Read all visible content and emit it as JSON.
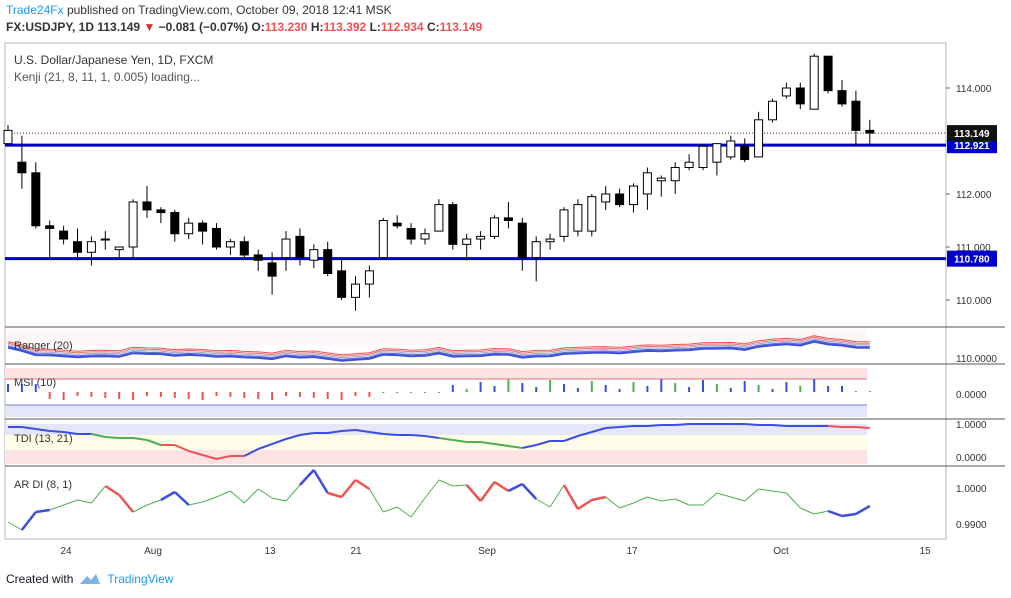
{
  "header": {
    "brand": "Trade24Fx",
    "published_text": "published on TradingView.com, October 09, 2018 12:41 MSK",
    "symbol": "FX:USDJPY, 1D",
    "price": "113.149",
    "change": "−0.081 (−0.07%)",
    "o_label": "O:",
    "o_value": "113.230",
    "h_label": "H:",
    "h_value": "113.392",
    "l_label": "L:",
    "l_value": "112.934",
    "c_label": "C:",
    "c_value": "113.149"
  },
  "chart_title": "U.S. Dollar/Japanese Yen, 1D, FXCM",
  "study_loading": "Kenji (21, 8, 11, 1, 0.005) loading...",
  "panes": {
    "ranger": "Ranger (20)",
    "msi": "MSI (10)",
    "tdi": "TDI (13, 21)",
    "ardi": "AR DI (8, 1)"
  },
  "footer": {
    "created_with": "Created with",
    "tv": "TradingView"
  },
  "colors": {
    "up": "#ffffff",
    "down": "#000000",
    "level": "#0000cc",
    "blue_series": "#3b4ee0",
    "red_series": "#ef5350",
    "green_series": "#4caf50"
  },
  "chart_data": {
    "type": "candlestick",
    "price_axis": {
      "ticks": [
        "114.000",
        "113.000",
        "112.000",
        "111.000",
        "110.000"
      ],
      "ylim": [
        109.5,
        115.05
      ]
    },
    "time_axis": {
      "ticks": [
        "24",
        "Aug",
        "13",
        "21",
        "Sep",
        "17",
        "Oct",
        "15"
      ]
    },
    "last_price": "113.149",
    "levels": [
      {
        "value": 112.921,
        "label": "112.921"
      },
      {
        "value": 110.78,
        "label": "110.780"
      }
    ],
    "candles": [
      [
        112.95,
        113.3,
        112.9,
        113.2
      ],
      [
        112.6,
        113.1,
        112.1,
        112.4
      ],
      [
        112.4,
        112.6,
        111.35,
        111.4
      ],
      [
        111.4,
        111.5,
        110.8,
        111.35
      ],
      [
        111.3,
        111.4,
        111.05,
        111.15
      ],
      [
        111.1,
        111.35,
        110.75,
        110.9
      ],
      [
        110.9,
        111.2,
        110.65,
        111.1
      ],
      [
        111.15,
        111.3,
        110.95,
        111.15
      ],
      [
        110.95,
        111.0,
        110.8,
        111.0
      ],
      [
        111.0,
        111.9,
        110.8,
        111.85
      ],
      [
        111.85,
        112.15,
        111.55,
        111.7
      ],
      [
        111.7,
        111.75,
        111.45,
        111.65
      ],
      [
        111.65,
        111.7,
        111.1,
        111.25
      ],
      [
        111.25,
        111.55,
        111.15,
        111.45
      ],
      [
        111.45,
        111.5,
        111.05,
        111.3
      ],
      [
        111.35,
        111.45,
        110.95,
        111.0
      ],
      [
        111.0,
        111.15,
        110.85,
        111.1
      ],
      [
        111.1,
        111.2,
        110.8,
        110.85
      ],
      [
        110.85,
        110.95,
        110.55,
        110.75
      ],
      [
        110.7,
        110.9,
        110.1,
        110.45
      ],
      [
        110.8,
        111.3,
        110.55,
        111.15
      ],
      [
        111.2,
        111.35,
        110.65,
        110.8
      ],
      [
        110.75,
        111.05,
        110.6,
        110.95
      ],
      [
        110.95,
        111.1,
        110.45,
        110.5
      ],
      [
        110.55,
        110.8,
        110.0,
        110.05
      ],
      [
        110.05,
        110.45,
        109.8,
        110.3
      ],
      [
        110.3,
        110.65,
        110.05,
        110.55
      ],
      [
        110.8,
        111.55,
        110.8,
        111.5
      ],
      [
        111.45,
        111.6,
        111.35,
        111.4
      ],
      [
        111.35,
        111.45,
        111.05,
        111.15
      ],
      [
        111.15,
        111.35,
        111.05,
        111.25
      ],
      [
        111.3,
        111.9,
        111.3,
        111.8
      ],
      [
        111.8,
        111.85,
        110.95,
        111.05
      ],
      [
        111.05,
        111.25,
        110.75,
        111.15
      ],
      [
        111.15,
        111.3,
        110.95,
        111.2
      ],
      [
        111.2,
        111.6,
        111.15,
        111.55
      ],
      [
        111.55,
        111.85,
        111.35,
        111.5
      ],
      [
        111.45,
        111.55,
        110.55,
        110.8
      ],
      [
        110.8,
        111.2,
        110.35,
        111.1
      ],
      [
        111.1,
        111.25,
        110.95,
        111.15
      ],
      [
        111.2,
        111.75,
        111.1,
        111.7
      ],
      [
        111.3,
        111.9,
        111.2,
        111.8
      ],
      [
        111.3,
        112.0,
        111.2,
        111.95
      ],
      [
        111.85,
        112.15,
        111.7,
        112.0
      ],
      [
        112.0,
        112.1,
        111.75,
        111.8
      ],
      [
        111.8,
        112.2,
        111.65,
        112.15
      ],
      [
        112.0,
        112.5,
        111.7,
        112.4
      ],
      [
        112.25,
        112.35,
        111.95,
        112.3
      ],
      [
        112.25,
        112.6,
        112.0,
        112.5
      ],
      [
        112.5,
        112.75,
        112.45,
        112.6
      ],
      [
        112.5,
        112.95,
        112.45,
        112.9
      ],
      [
        112.6,
        112.95,
        112.35,
        112.95
      ],
      [
        112.7,
        113.1,
        112.65,
        113.0
      ],
      [
        112.9,
        113.05,
        112.6,
        112.65
      ],
      [
        112.7,
        113.55,
        112.7,
        113.4
      ],
      [
        113.4,
        113.8,
        113.35,
        113.75
      ],
      [
        113.85,
        114.1,
        113.8,
        114.0
      ],
      [
        114.0,
        114.1,
        113.6,
        113.7
      ],
      [
        113.6,
        114.65,
        113.6,
        114.6
      ],
      [
        114.6,
        114.6,
        113.9,
        113.95
      ],
      [
        113.95,
        114.15,
        113.65,
        113.7
      ],
      [
        113.75,
        113.95,
        112.9,
        113.2
      ],
      [
        113.2,
        113.4,
        112.95,
        113.15
      ]
    ]
  }
}
